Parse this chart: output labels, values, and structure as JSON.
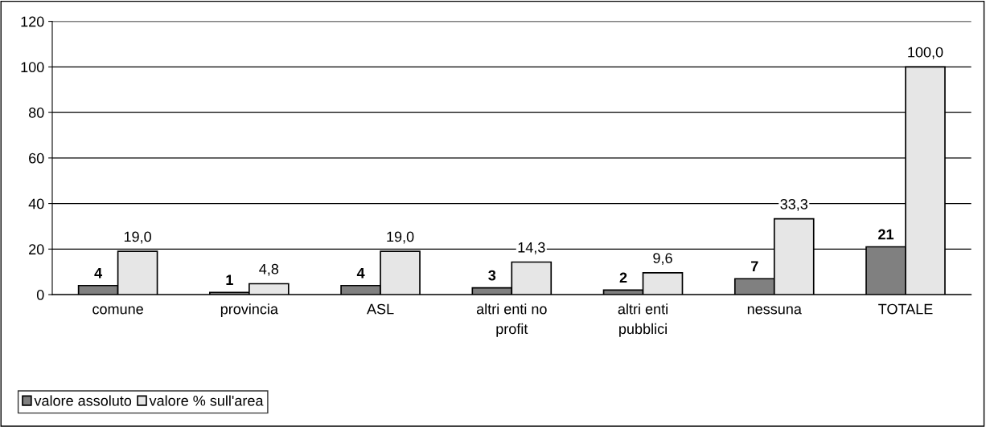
{
  "chart_data": {
    "type": "bar",
    "categories": [
      "comune",
      "provincia",
      "ASL",
      "altri enti no\nprofit",
      "altri enti\npubblici",
      "nessuna",
      "TOTALE"
    ],
    "series": [
      {
        "name": "valore assoluto",
        "color": "#808080",
        "values": [
          4,
          1,
          4,
          3,
          2,
          7,
          21
        ],
        "value_labels": [
          "4",
          "1",
          "4",
          "3",
          "2",
          "7",
          "21"
        ]
      },
      {
        "name": "valore % sull'area",
        "color": "#e6e6e6",
        "values": [
          19.0,
          4.8,
          19.0,
          14.3,
          9.6,
          33.3,
          100.0
        ],
        "value_labels": [
          "19,0",
          "4,8",
          "19,0",
          "14,3",
          "9,6",
          "33,3",
          "100,0"
        ]
      }
    ],
    "ylim": [
      0,
      120
    ],
    "yticks": [
      0,
      20,
      40,
      60,
      80,
      100,
      120
    ],
    "grid": "y",
    "legend": "bottom left"
  }
}
